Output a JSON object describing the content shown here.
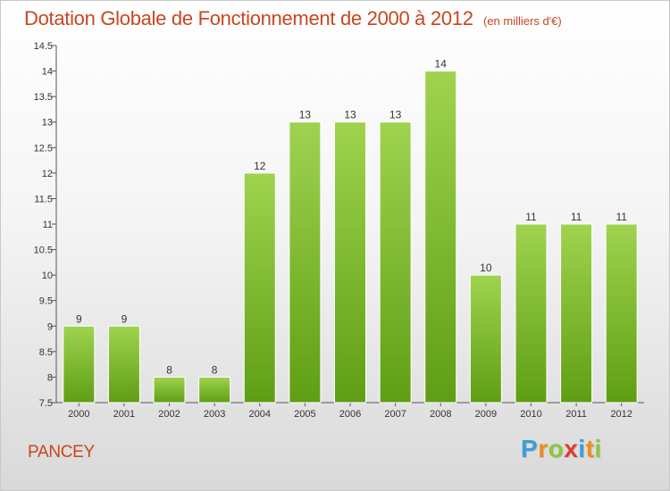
{
  "title": "Dotation Globale de Fonctionnement de 2000 à 2012",
  "subtitle": "(en milliers d'€)",
  "place": "PANCEY",
  "logo": {
    "letters": [
      "P",
      "r",
      "o",
      "x",
      "i",
      "t",
      "i"
    ],
    "colors": [
      "#3aa0d8",
      "#f08a1c",
      "#8cc63e",
      "#e23b2e",
      "#3aa0d8",
      "#f08a1c",
      "#8cc63e"
    ]
  },
  "colors": {
    "bar_light": "#9fd34f",
    "bar_dark": "#5f9e14",
    "title": "#c8461e"
  },
  "chart_data": {
    "type": "bar",
    "categories": [
      "2000",
      "2001",
      "2002",
      "2003",
      "2004",
      "2005",
      "2006",
      "2007",
      "2008",
      "2009",
      "2010",
      "2011",
      "2012"
    ],
    "values": [
      9,
      9,
      8,
      8,
      12,
      13,
      13,
      13,
      14,
      10,
      11,
      11,
      11
    ],
    "data_labels": [
      "9",
      "9",
      "8",
      "8",
      "12",
      "13",
      "13",
      "13",
      "14",
      "10",
      "11",
      "11",
      "11"
    ],
    "y_ticks": [
      "7.5",
      "8",
      "8.5",
      "9",
      "9.5",
      "10",
      "10.5",
      "11",
      "11.5",
      "12",
      "12.5",
      "13",
      "13.5",
      "14",
      "14.5"
    ],
    "ylim": [
      7.5,
      14.5
    ],
    "grid": false,
    "legend": "none"
  }
}
